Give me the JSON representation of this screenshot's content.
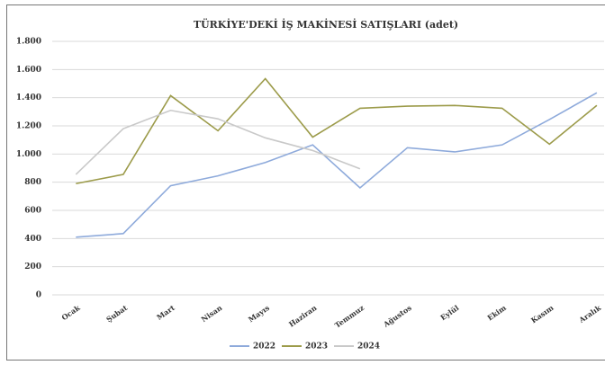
{
  "chart_data": {
    "type": "line",
    "title": "TÜRKİYE'DEKİ İŞ MAKİNESİ SATIŞLARI (adet)",
    "categories": [
      "Ocak",
      "Şubat",
      "Mart",
      "Nisan",
      "Mayıs",
      "Haziran",
      "Temmuz",
      "Ağustos",
      "Eylül",
      "Ekim",
      "Kasım",
      "Aralık"
    ],
    "series": [
      {
        "name": "2022",
        "color": "#8eaadb",
        "values": [
          410,
          435,
          775,
          845,
          940,
          1065,
          760,
          1045,
          1015,
          1065,
          1245,
          1435
        ]
      },
      {
        "name": "2023",
        "color": "#9c9b4a",
        "values": [
          790,
          855,
          1415,
          1165,
          1535,
          1120,
          1325,
          1340,
          1345,
          1325,
          1070,
          1345
        ]
      },
      {
        "name": "2024",
        "color": "#c9c9c9",
        "values": [
          855,
          1180,
          1310,
          1250,
          1115,
          1025,
          895,
          null,
          null,
          null,
          null,
          null
        ]
      }
    ],
    "ylim": [
      0,
      1800
    ],
    "yticks": [
      0,
      200,
      400,
      600,
      800,
      {
        "value": 1000,
        "label": "1.000"
      },
      {
        "value": 1200,
        "label": "1.200"
      },
      {
        "value": 1400,
        "label": "1.400"
      },
      {
        "value": 1600,
        "label": "1.600"
      },
      {
        "value": 1800,
        "label": "1.800"
      }
    ],
    "grid": true,
    "legend": "bottom"
  }
}
